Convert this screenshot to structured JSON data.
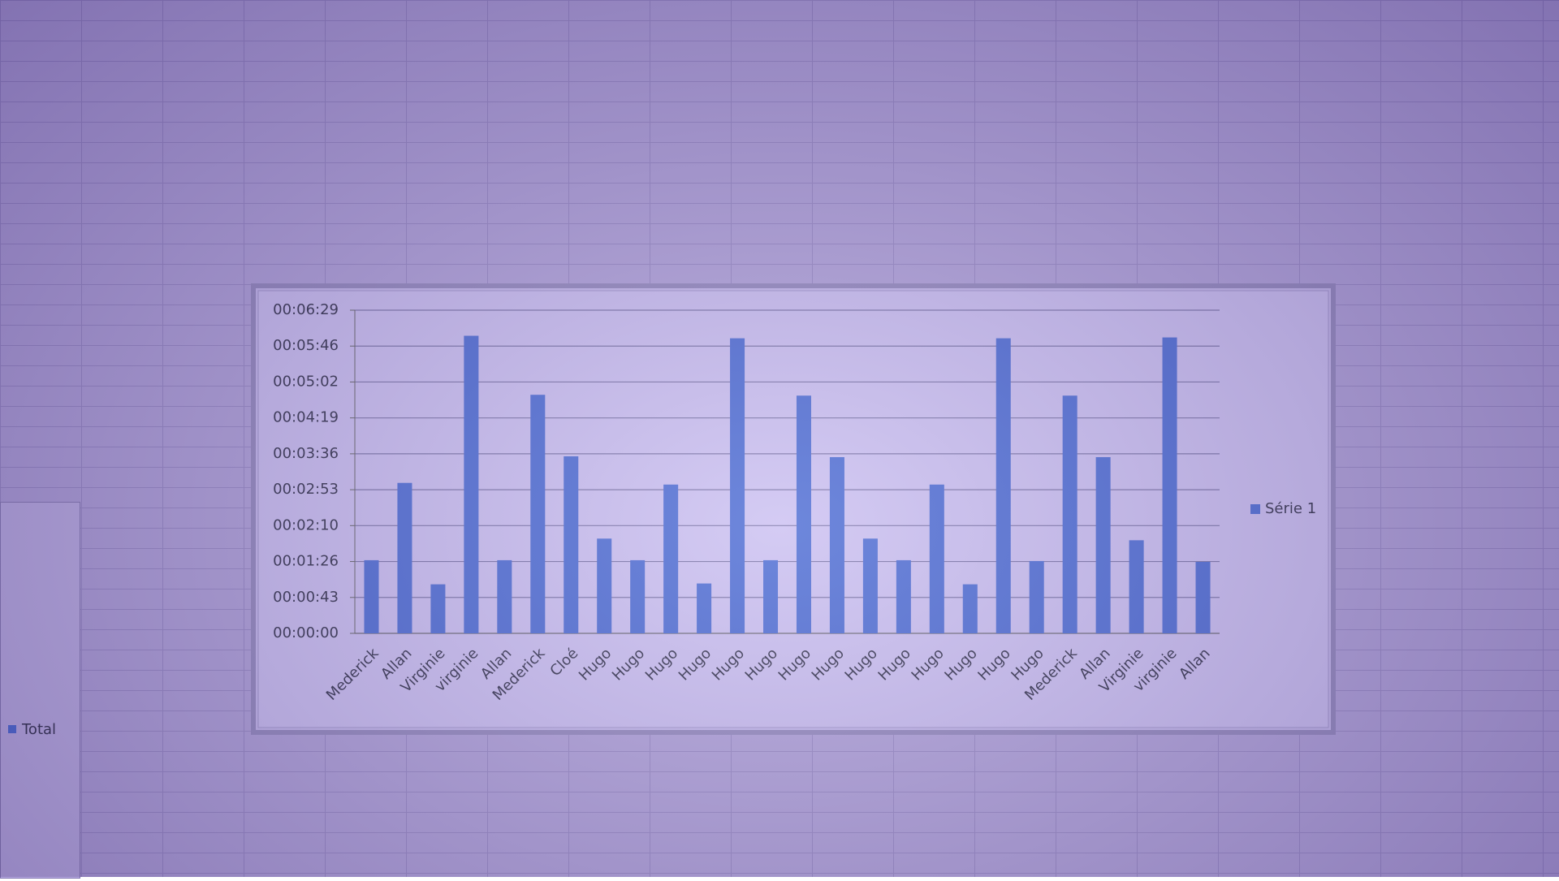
{
  "chart_data": {
    "type": "bar",
    "categories": [
      "Mederick",
      "Allan",
      "Virginie",
      "virginie",
      "Allan",
      "Mederick",
      "Cloé",
      "Hugo",
      "Hugo",
      "Hugo",
      "Hugo",
      "Hugo",
      "Hugo",
      "Hugo",
      "Hugo",
      "Hugo",
      "Hugo",
      "Hugo",
      "Hugo",
      "Hugo",
      "Hugo",
      "Mederick",
      "Allan",
      "Virginie",
      "virginie",
      "Allan"
    ],
    "series": [
      {
        "name": "Série 1",
        "color": "#3d5fd0",
        "values": [
          88,
          181,
          59,
          358,
          88,
          287,
          213,
          114,
          88,
          179,
          60,
          355,
          88,
          286,
          212,
          114,
          88,
          179,
          59,
          355,
          87,
          286,
          212,
          112,
          356,
          86
        ]
      }
    ],
    "ylim": [
      0,
      388.8
    ],
    "yticks": [
      {
        "value": 0,
        "label": "00:00:00"
      },
      {
        "value": 43.2,
        "label": "00:00:43"
      },
      {
        "value": 86.4,
        "label": "00:01:26"
      },
      {
        "value": 129.6,
        "label": "00:02:10"
      },
      {
        "value": 172.8,
        "label": "00:02:53"
      },
      {
        "value": 216,
        "label": "00:03:36"
      },
      {
        "value": 259.2,
        "label": "00:04:19"
      },
      {
        "value": 302.4,
        "label": "00:05:02"
      },
      {
        "value": 345.6,
        "label": "00:05:46"
      },
      {
        "value": 388.8,
        "label": "00:06:29"
      }
    ],
    "grid": true,
    "legend": "right"
  },
  "sheet": {
    "other_chart_legend": "Total"
  }
}
